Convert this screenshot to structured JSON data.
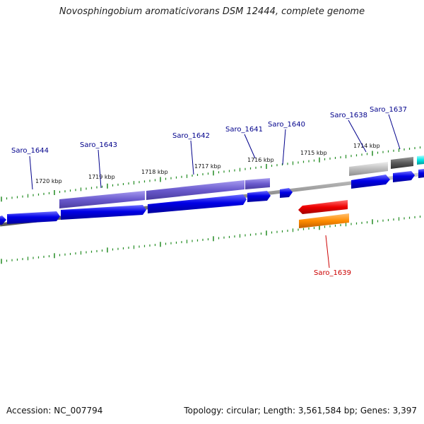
{
  "title": "Novosphingobium aromaticivorans DSM 12444, complete genome",
  "footer": {
    "accession": "Accession: NC_007794",
    "summary": "Topology: circular; Length: 3,561,584 bp; Genes: 3,397"
  },
  "scale_labels": [
    "1720 kbp",
    "1719 kbp",
    "1718 kbp",
    "1717 kbp",
    "1716 kbp",
    "1715 kbp",
    "1714 kbp"
  ],
  "genes": [
    {
      "id": "Saro_1644",
      "color": "#00008b"
    },
    {
      "id": "Saro_1643",
      "color": "#00008b"
    },
    {
      "id": "Saro_1642",
      "color": "#00008b"
    },
    {
      "id": "Saro_1641",
      "color": "#00008b"
    },
    {
      "id": "Saro_1640",
      "color": "#00008b"
    },
    {
      "id": "Saro_1638",
      "color": "#00008b"
    },
    {
      "id": "Saro_1637",
      "color": "#00008b"
    },
    {
      "id": "Saro_1639",
      "color": "#cc0000"
    }
  ],
  "colors": {
    "backbone": "#808080",
    "cds_forward": "#0000e6",
    "feature_purple": "#6a5acd",
    "cds_reverse": "#ee0000",
    "feature_orange": "#ff8c00",
    "feature_silver": "#bdbdbd",
    "feature_dark": "#5a5a5a",
    "feature_cyan": "#00e5e5",
    "ticks": "#228b22"
  }
}
